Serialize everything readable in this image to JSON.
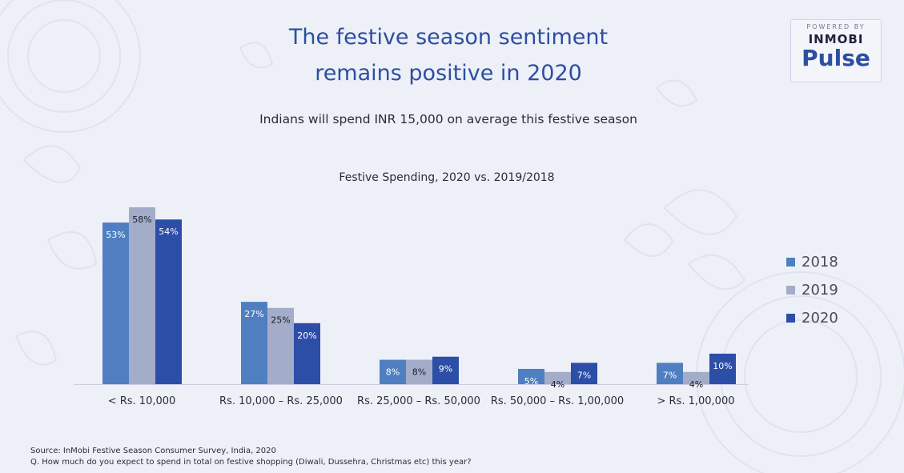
{
  "title_line1": "The festive season sentiment",
  "title_line2": "remains positive in 2020",
  "subtitle": "Indians will spend INR 15,000 on average this festive season",
  "logo": {
    "powered": "POWERED BY",
    "brand": "INMOBI",
    "product": "Pulse"
  },
  "footer": {
    "source": "Source: InMobi Festive Season Consumer Survey, India, 2020",
    "question": "Q. How much do you expect to spend in total on festive shopping (Diwali, Dussehra, Christmas etc) this year?"
  },
  "chart_data": {
    "type": "bar",
    "title": "Festive Spending, 2020 vs. 2019/2018",
    "categories": [
      "< Rs. 10,000",
      "Rs. 10,000 – Rs. 25,000",
      "Rs. 25,000 – Rs. 50,000",
      "Rs. 50,000 – Rs. 1,00,000",
      "> Rs. 1,00,000"
    ],
    "series": [
      {
        "name": "2018",
        "color": "#4f7fc1",
        "values": [
          53,
          27,
          8,
          5,
          7
        ],
        "labels": [
          "53%",
          "27%",
          "8%",
          "5%",
          "7%"
        ]
      },
      {
        "name": "2019",
        "color": "#a3adc9",
        "values": [
          58,
          25,
          8,
          4,
          4
        ],
        "labels": [
          "58%",
          "25%",
          "8%",
          "4%",
          "4%"
        ]
      },
      {
        "name": "2020",
        "color": "#2c4ea6",
        "values": [
          54,
          20,
          9,
          7,
          10
        ],
        "labels": [
          "54%",
          "20%",
          "9%",
          "7%",
          "10%"
        ]
      }
    ],
    "ylim": [
      0,
      58
    ],
    "legend_position": "right",
    "grid": false
  }
}
